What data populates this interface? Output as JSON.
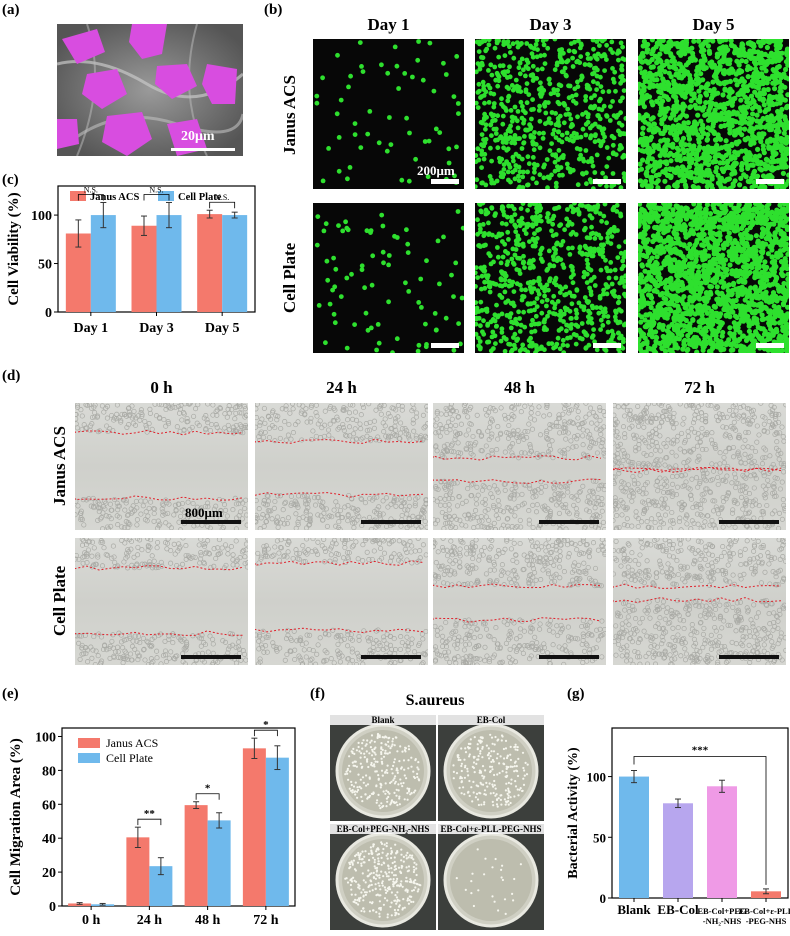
{
  "panels": {
    "a": {
      "label": "(a)",
      "scale": "20μm"
    },
    "b": {
      "label": "(b)",
      "days": [
        "Day 1",
        "Day 3",
        "Day 5"
      ],
      "rows": [
        "Janus ACS",
        "Cell Plate"
      ],
      "scale": "200μm"
    },
    "c": {
      "label": "(c)"
    },
    "d": {
      "label": "(d)",
      "times": [
        "0 h",
        "24 h",
        "48 h",
        "72 h"
      ],
      "rows": [
        "Janus ACS",
        "Cell Plate"
      ],
      "scale": "800μm"
    },
    "e": {
      "label": "(e)"
    },
    "f": {
      "label": "(f)",
      "title": "S.aureus",
      "plates": [
        "Blank",
        "EB-Col",
        "EB-Col+PEG-NH₂-NHS",
        "EB-Col+ε-PLL-PEG-NHS"
      ]
    },
    "g": {
      "label": "(g)"
    }
  },
  "colors": {
    "janus": "#f4796c",
    "plate": "#6fb9ec",
    "fluor": "#2ee02e",
    "semcell": "#d84de0",
    "g_blank": "#6fb9ec",
    "g_ebcol": "#b7a6ee",
    "g_peg": "#ef9ae6",
    "g_pll": "#f4796c",
    "scratch": "#e0202a"
  },
  "chart_data": [
    {
      "id": "c",
      "type": "bar",
      "categories": [
        "Day 1",
        "Day 3",
        "Day 5"
      ],
      "series": [
        {
          "name": "Janus ACS",
          "values": [
            81,
            89,
            101
          ],
          "errors": [
            14,
            10,
            4
          ]
        },
        {
          "name": "Cell Plate",
          "values": [
            100,
            100,
            100
          ],
          "errors": [
            13,
            13,
            3
          ]
        }
      ],
      "ylabel": "Cell Viability (%)",
      "ylim": [
        0,
        130
      ],
      "yticks": [
        "0",
        "50",
        "100"
      ],
      "legend": "top",
      "annotations": [
        "N.S.",
        "N.S.",
        "N.S."
      ]
    },
    {
      "id": "e",
      "type": "bar",
      "categories": [
        "0 h",
        "24 h",
        "48 h",
        "72 h"
      ],
      "series": [
        {
          "name": "Janus ACS",
          "values": [
            1.5,
            40.5,
            59.5,
            93
          ],
          "errors": [
            0.5,
            6,
            2,
            6
          ]
        },
        {
          "name": "Cell Plate",
          "values": [
            1,
            23.5,
            50.5,
            87.5
          ],
          "errors": [
            0.5,
            5,
            4.5,
            7
          ]
        }
      ],
      "ylabel": "Cell Migration Area (%)",
      "ylim": [
        0,
        105
      ],
      "yticks": [
        "0",
        "20",
        "40",
        "60",
        "80",
        "100"
      ],
      "legend": "top-left",
      "annotations": [
        "**",
        "*",
        "*"
      ]
    },
    {
      "id": "g",
      "type": "bar",
      "categories": [
        "Blank",
        "EB-Col",
        "EB-Col+PEG-NH₂-NHS",
        "EB-Col+ε-PLL-PEG-NHS"
      ],
      "tick_lines": [
        [
          "Blank"
        ],
        [
          "EB-Col"
        ],
        [
          "EB-Col+PEG",
          "-NH₂-NHS"
        ],
        [
          "EB-Col+ε-PLL",
          "-PEG-NHS"
        ]
      ],
      "values": [
        100,
        78,
        92,
        5.5
      ],
      "errors": [
        5,
        3.5,
        5,
        2
      ],
      "ylabel": "Bacterial Activity (%)",
      "ylim": [
        0,
        140
      ],
      "yticks": [
        "0",
        "50",
        "100"
      ],
      "annotations": [
        "***"
      ]
    }
  ]
}
